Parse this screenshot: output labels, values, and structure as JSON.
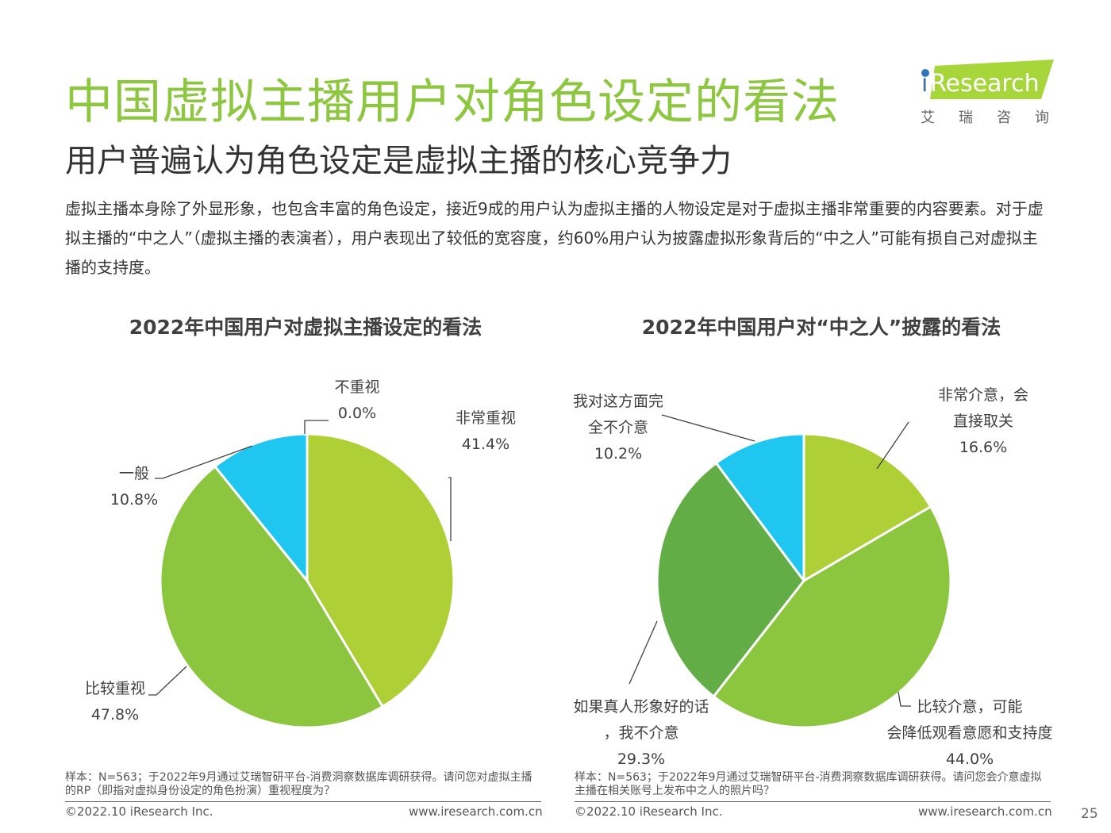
{
  "header": {
    "title": "中国虚拟主播用户对角色设定的看法",
    "subtitle": "用户普遍认为角色设定是虚拟主播的核心竞争力",
    "intro": "虚拟主播本身除了外显形象，也包含丰富的角色设定，接近9成的用户认为虚拟主播的人物设定是对于虚拟主播非常重要的内容要素。对于虚拟主播的“中之人”（虚拟主播的表演者），用户表现出了较低的宽容度，约60%用户认为披露虚拟形象背后的“中之人”可能有损自己对虚拟主播的支持度。"
  },
  "logo": {
    "brand_i": "i",
    "brand_rest": "Research",
    "cn": "艾瑞咨询"
  },
  "colors": {
    "title_green": "#8dc63f",
    "slice_lime": "#aed036",
    "slice_green": "#8cc63f",
    "slice_dark_green": "#62ad45",
    "slice_cyan": "#1ec6f0",
    "leader": "#404040"
  },
  "chart_data": [
    {
      "type": "pie",
      "title": "2022年中国用户对虚拟主播设定的看法",
      "slices": [
        {
          "label": "非常重视",
          "value": 41.4,
          "display": "41.4%",
          "color": "#aed036"
        },
        {
          "label": "比较重视",
          "value": 47.8,
          "display": "47.8%",
          "color": "#8cc63f"
        },
        {
          "label": "一般",
          "value": 10.8,
          "display": "10.8%",
          "color": "#1ec6f0"
        },
        {
          "label": "不重视",
          "value": 0.0,
          "display": "0.0%",
          "color": "#62ad45"
        }
      ]
    },
    {
      "type": "pie",
      "title": "2022年中国用户对“中之人”披露的看法",
      "slices": [
        {
          "label": "非常介意，会直接取关",
          "value": 16.6,
          "display": "16.6%",
          "color": "#aed036"
        },
        {
          "label": "比较介意，可能会降低观看意愿和支持度",
          "value": 44.0,
          "display": "44.0%",
          "color": "#8cc63f"
        },
        {
          "label": "如果真人形象好的话，我不介意",
          "value": 29.3,
          "display": "29.3%",
          "color": "#62ad45"
        },
        {
          "label": "我对这方面完全不介意",
          "value": 10.2,
          "display": "10.2%",
          "color": "#1ec6f0"
        }
      ]
    }
  ],
  "notes": {
    "left": "样本：N=563；于2022年9月通过艾瑞智研平台-消费洞察数据库调研获得。请问您对虚拟主播的RP（即指对虚拟身份设定的角色扮演）重视程度为？",
    "right": "样本：N=563；于2022年9月通过艾瑞智研平台-消费洞察数据库调研获得。请问您会介意虚拟主播在相关账号上发布中之人的照片吗？"
  },
  "footer": {
    "copyright": "©2022.10 iResearch Inc.",
    "site": "www.iresearch.com.cn",
    "page": "25"
  }
}
